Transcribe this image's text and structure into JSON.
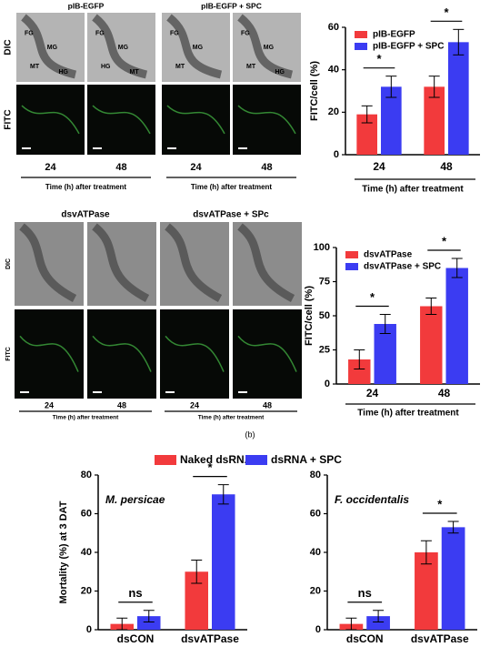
{
  "image_figures": [
    {
      "rows": [
        "DIC",
        "FITC"
      ],
      "times": [
        "24",
        "48"
      ],
      "xlabel": "Time (h) after treatment",
      "groups": [
        {
          "title": "pIB-EGFP",
          "images": [
            [
              "FG",
              "MG",
              "MT",
              "HG"
            ],
            [
              "FG",
              "MG",
              "HG",
              "MT"
            ]
          ]
        },
        {
          "title": "pIB-EGFP + SPC",
          "images": [
            [
              "FG",
              "MG",
              "MT"
            ],
            [
              "FG",
              "MG",
              "MT",
              "HG"
            ]
          ]
        }
      ]
    },
    {
      "rows": [
        "DIC",
        "FITC"
      ],
      "times": [
        "24",
        "48"
      ],
      "xlabel": "Time (h) after treatment",
      "groups": [
        {
          "title": "dsvATPase",
          "images": [
            [],
            []
          ]
        },
        {
          "title": "dsvATPase + SPc",
          "images": [
            [],
            []
          ]
        }
      ]
    }
  ],
  "panel_label": "(b)",
  "chart_data": [
    {
      "type": "bar",
      "ylabel": "FITC/cell (%)",
      "xlabel": "Time (h) after treatment",
      "categories": [
        "24",
        "48"
      ],
      "series": [
        {
          "name": "pIB-EGFP",
          "color": "#f23a3c",
          "values": [
            19,
            32
          ],
          "errors": [
            4,
            5
          ]
        },
        {
          "name": "pIB-EGFP + SPC",
          "color": "#3b3cf2",
          "values": [
            32,
            53
          ],
          "errors": [
            5,
            6
          ]
        }
      ],
      "ylim": [
        0,
        60
      ],
      "yticks": [
        0,
        20,
        40,
        60
      ],
      "significance": [
        "*",
        "*"
      ],
      "legend": "upper left"
    },
    {
      "type": "bar",
      "ylabel": "FITC/cell (%)",
      "xlabel": "Time (h) after treatment",
      "categories": [
        "24",
        "48"
      ],
      "series": [
        {
          "name": "dsvATPase",
          "color": "#f23a3c",
          "values": [
            18,
            57
          ],
          "errors": [
            7,
            6
          ]
        },
        {
          "name": "dsvATPase + SPC",
          "color": "#3b3cf2",
          "values": [
            44,
            85
          ],
          "errors": [
            7,
            7
          ]
        }
      ],
      "ylim": [
        0,
        100
      ],
      "yticks": [
        0,
        25,
        50,
        75,
        100
      ],
      "significance": [
        "*",
        "*"
      ],
      "legend": "upper left"
    },
    {
      "type": "bar",
      "title": "M. persicae",
      "ylabel": "Mortality (%) at 3 DAT",
      "categories": [
        "dsCON",
        "dsvATPase"
      ],
      "series": [
        {
          "name": "Naked dsRNA",
          "color": "#f23a3c",
          "values": [
            3,
            30
          ],
          "errors": [
            3,
            6
          ]
        },
        {
          "name": "dsRNA + SPC",
          "color": "#3b3cf2",
          "values": [
            7,
            70
          ],
          "errors": [
            3,
            5
          ]
        }
      ],
      "ylim": [
        0,
        80
      ],
      "yticks": [
        0,
        20,
        40,
        60,
        80
      ],
      "significance": [
        "ns",
        "*"
      ],
      "legend": "above"
    },
    {
      "type": "bar",
      "title": "F. occidentalis",
      "categories": [
        "dsCON",
        "dsvATPase"
      ],
      "series": [
        {
          "color": "#f23a3c",
          "values": [
            3,
            40
          ],
          "errors": [
            3,
            6
          ]
        },
        {
          "color": "#3b3cf2",
          "values": [
            7,
            53
          ],
          "errors": [
            3,
            3
          ]
        }
      ],
      "ylim": [
        0,
        80
      ],
      "yticks": [
        0,
        20,
        40,
        60,
        80
      ],
      "significance": [
        "ns",
        "*"
      ]
    }
  ]
}
